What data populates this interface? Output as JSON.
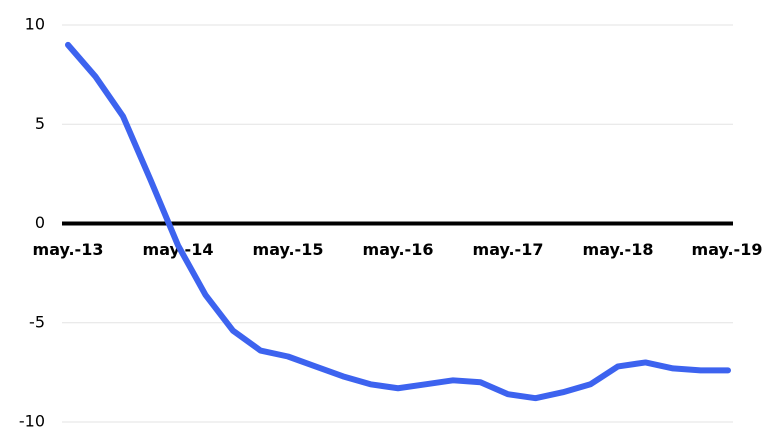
{
  "chart_data": {
    "type": "line",
    "categories": [
      "may.-13",
      null,
      null,
      null,
      "may.-14",
      null,
      null,
      null,
      "may.-15",
      null,
      null,
      null,
      "may.-16",
      null,
      null,
      null,
      "may.-17",
      null,
      null,
      null,
      "may.-18",
      null,
      null,
      null,
      "may.-19"
    ],
    "series": [
      {
        "color": "#3d63ef",
        "values": [
          9.0,
          7.4,
          5.4,
          2.2,
          -1.1,
          -3.6,
          -5.4,
          -6.4,
          -6.7,
          -7.2,
          -7.7,
          -8.1,
          -8.3,
          -8.1,
          -7.9,
          -8.0,
          -8.6,
          -8.8,
          -8.5,
          -8.1,
          -7.2,
          -7.0,
          -7.3,
          -7.4,
          -7.4
        ]
      }
    ],
    "ylim": [
      -10,
      10
    ],
    "yticks": [
      -10,
      -5,
      0,
      5,
      10
    ],
    "grid": true
  }
}
